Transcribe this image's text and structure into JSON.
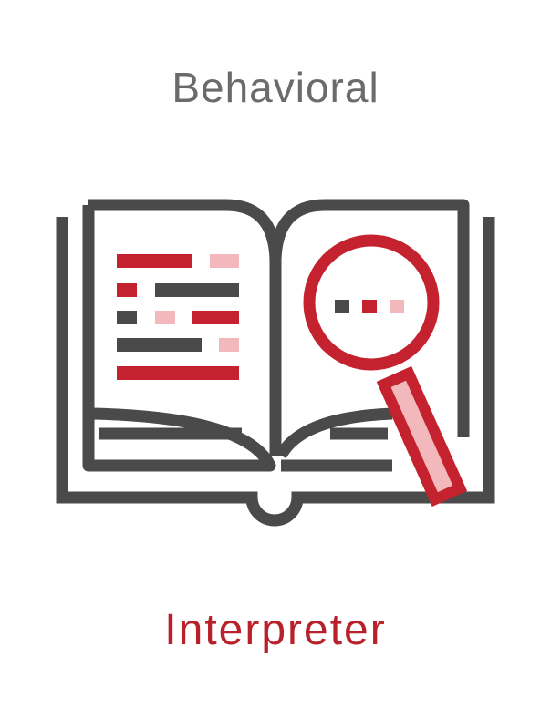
{
  "header": {
    "category": "Behavioral"
  },
  "footer": {
    "pattern_name": "Interpreter"
  },
  "illustration": {
    "icon": "open-book-with-magnifying-glass-icon"
  },
  "colors": {
    "category_text": "#6b6b6b",
    "pattern_text": "#b8202a",
    "outline": "#4a4a4a",
    "accent_red": "#c4222e",
    "accent_pink": "#f2b8bc"
  }
}
